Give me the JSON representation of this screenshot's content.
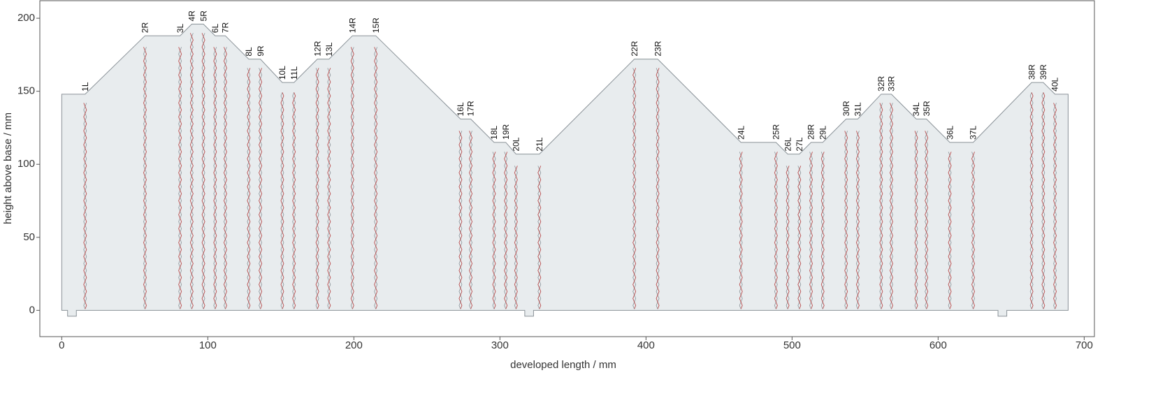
{
  "chart_data": {
    "type": "area",
    "xlabel": "developed length / mm",
    "ylabel": "height above base / mm",
    "x": [
      0,
      4,
      4,
      10,
      10,
      317,
      317,
      323,
      323,
      641,
      641,
      647,
      647,
      689,
      689,
      680,
      672,
      664,
      624,
      608,
      592,
      585,
      568,
      561,
      545,
      537,
      521,
      513,
      505,
      497,
      489,
      465,
      408,
      392,
      327,
      311,
      304,
      296,
      280,
      273,
      215,
      199,
      183,
      175,
      159,
      151,
      136,
      128,
      112,
      105,
      97,
      89,
      81,
      57,
      16,
      0
    ],
    "y": [
      0,
      0,
      -4,
      -4,
      0,
      0,
      -4,
      -4,
      0,
      0,
      -4,
      -4,
      0,
      0,
      148,
      148,
      156,
      156,
      115,
      115,
      131,
      131,
      148,
      148,
      131,
      131,
      115,
      115,
      107,
      107,
      115,
      115,
      172,
      172,
      107,
      107,
      115,
      115,
      131,
      131,
      188,
      188,
      172,
      172,
      156,
      156,
      172,
      172,
      188,
      188,
      196,
      196,
      188,
      188,
      148,
      148
    ],
    "color": "#e8ecee",
    "edge_color": "#8a9298",
    "folds": {
      "labels": [
        "1L",
        "2R",
        "3L",
        "4R",
        "5R",
        "6L",
        "7R",
        "8L",
        "9R",
        "10L",
        "11L",
        "12R",
        "13L",
        "14R",
        "15R",
        "16L",
        "17R",
        "18L",
        "19R",
        "20L",
        "21L",
        "22R",
        "23R",
        "24L",
        "25R",
        "26L",
        "27L",
        "28R",
        "29L",
        "30R",
        "31L",
        "32R",
        "33R",
        "34L",
        "35R",
        "36L",
        "37L",
        "38R",
        "39R",
        "40L"
      ],
      "x": [
        16,
        57,
        81,
        89,
        97,
        105,
        112,
        128,
        136,
        151,
        159,
        175,
        183,
        199,
        215,
        273,
        280,
        296,
        304,
        311,
        327,
        392,
        408,
        465,
        489,
        497,
        505,
        513,
        521,
        537,
        545,
        561,
        568,
        585,
        592,
        608,
        624,
        664,
        672,
        680
      ],
      "heights": [
        148,
        188,
        188,
        196,
        196,
        188,
        188,
        172,
        172,
        156,
        156,
        172,
        172,
        188,
        188,
        131,
        131,
        115,
        115,
        107,
        107,
        172,
        172,
        115,
        115,
        107,
        107,
        115,
        115,
        131,
        131,
        148,
        148,
        131,
        131,
        115,
        115,
        156,
        156,
        148
      ],
      "color": "#b84a4a"
    },
    "xlim": [
      -15,
      707
    ],
    "ylim": [
      -18,
      212
    ],
    "xticks": [
      0,
      100,
      200,
      300,
      400,
      500,
      600,
      700
    ],
    "yticks": [
      0,
      50,
      100,
      150,
      200
    ]
  }
}
